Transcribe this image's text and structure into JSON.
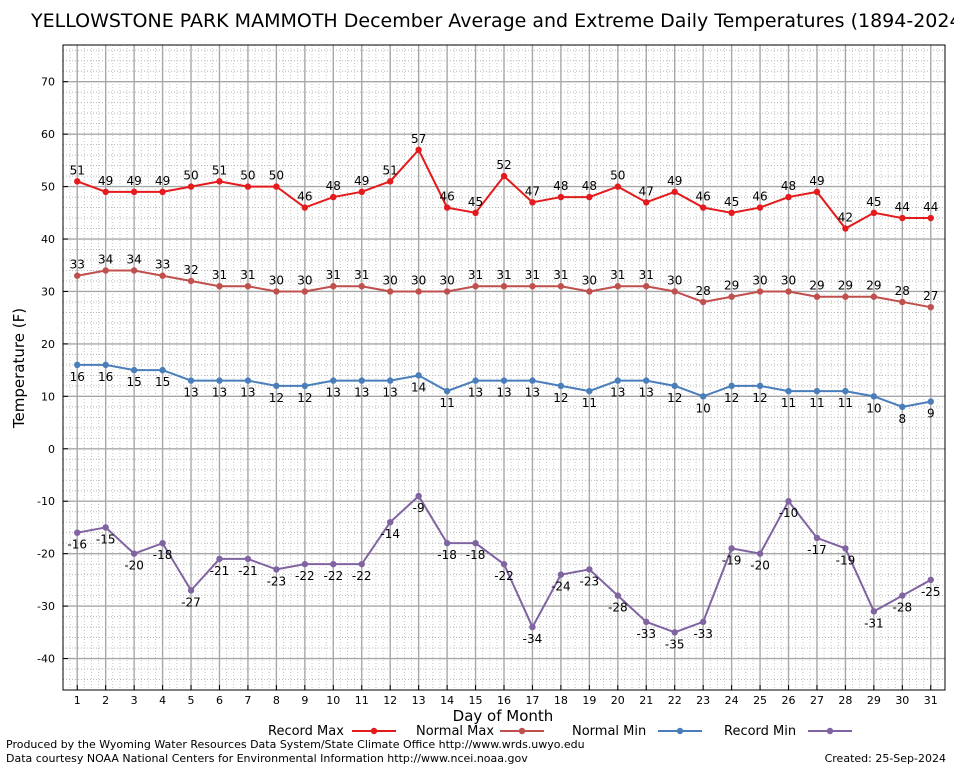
{
  "chart_data": {
    "type": "line",
    "title": "YELLOWSTONE PARK MAMMOTH December Average and Extreme Daily Temperatures (1894-2024)",
    "xlabel": "Day of Month",
    "ylabel": "Temperature (F)",
    "xlim": [
      0.5,
      31.5
    ],
    "ylim": [
      -46,
      77
    ],
    "y_ticks": [
      -40,
      -30,
      -20,
      -10,
      0,
      10,
      20,
      30,
      40,
      50,
      60,
      70
    ],
    "grid": true,
    "legend_position": "bottom",
    "categories": [
      "1",
      "2",
      "3",
      "4",
      "5",
      "6",
      "7",
      "8",
      "9",
      "10",
      "11",
      "12",
      "13",
      "14",
      "15",
      "16",
      "17",
      "18",
      "19",
      "20",
      "21",
      "22",
      "23",
      "24",
      "25",
      "26",
      "27",
      "28",
      "29",
      "30",
      "31"
    ],
    "series": [
      {
        "name": "Record Max",
        "color": "#e41a1c",
        "label_position": "above",
        "values": [
          51,
          49,
          49,
          49,
          50,
          51,
          50,
          50,
          46,
          48,
          49,
          51,
          57,
          46,
          45,
          52,
          47,
          48,
          48,
          50,
          47,
          49,
          46,
          45,
          46,
          48,
          49,
          42,
          45,
          44,
          44
        ]
      },
      {
        "name": "Normal Max",
        "color": "#c0504d",
        "label_position": "above",
        "values": [
          33,
          34,
          34,
          33,
          32,
          31,
          31,
          30,
          30,
          31,
          31,
          30,
          30,
          30,
          31,
          31,
          31,
          31,
          30,
          31,
          31,
          30,
          28,
          29,
          30,
          30,
          29,
          29,
          29,
          28,
          27
        ]
      },
      {
        "name": "Normal Min",
        "color": "#4a7ebb",
        "label_position": "below",
        "values": [
          16,
          16,
          15,
          15,
          13,
          13,
          13,
          12,
          12,
          13,
          13,
          13,
          14,
          11,
          13,
          13,
          13,
          12,
          11,
          13,
          13,
          12,
          10,
          12,
          12,
          11,
          11,
          11,
          10,
          8,
          9
        ]
      },
      {
        "name": "Record Min",
        "color": "#8064a2",
        "label_position": "below",
        "values": [
          -16,
          -15,
          -20,
          -18,
          -27,
          -21,
          -21,
          -23,
          -22,
          -22,
          -22,
          -14,
          -9,
          -18,
          -18,
          -22,
          -34,
          -24,
          -23,
          -28,
          -33,
          -35,
          -33,
          -19,
          -20,
          -10,
          -17,
          -19,
          -31,
          -28,
          -25
        ]
      }
    ]
  },
  "footer": {
    "produced_by": "Produced by the Wyoming Water Resources Data System/State Climate Office http://www.wrds.uwyo.edu",
    "data_courtesy": "Data courtesy NOAA National Centers for Environmental Information http://www.ncei.noaa.gov",
    "created": "Created: 25-Sep-2024"
  }
}
